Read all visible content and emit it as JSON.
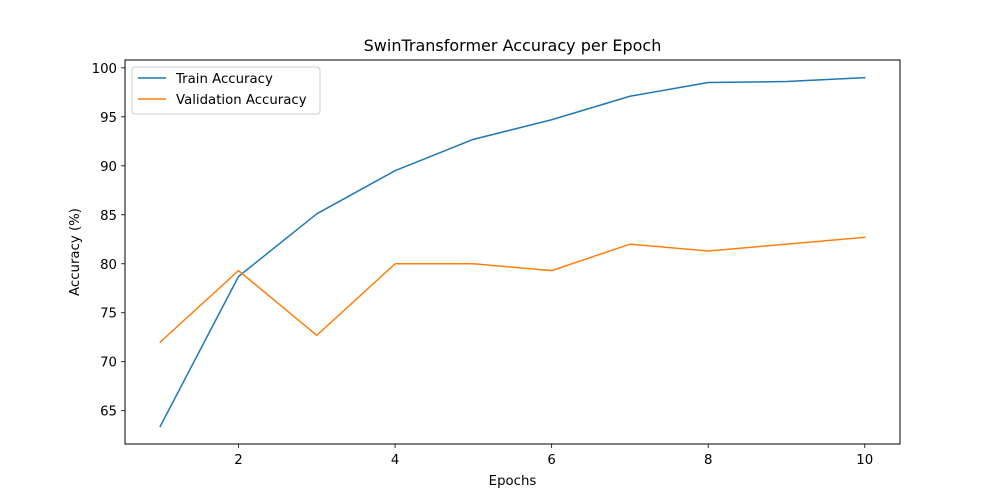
{
  "chart_data": {
    "type": "line",
    "title": "SwinTransformer Accuracy per Epoch",
    "xlabel": "Epochs",
    "ylabel": "Accuracy (%)",
    "x": [
      1,
      2,
      3,
      4,
      5,
      6,
      7,
      8,
      9,
      10
    ],
    "xlim": [
      0.55,
      10.45
    ],
    "ylim": [
      61.6,
      100.8
    ],
    "xticks": [
      2,
      4,
      6,
      8,
      10
    ],
    "yticks": [
      65,
      70,
      75,
      80,
      85,
      90,
      95,
      100
    ],
    "grid": false,
    "legend_position": "top-left",
    "series": [
      {
        "name": "Train Accuracy",
        "color": "#1f77b4",
        "values": [
          63.4,
          78.7,
          85.1,
          89.5,
          92.7,
          94.7,
          97.1,
          98.5,
          98.6,
          99.0
        ]
      },
      {
        "name": "Validation Accuracy",
        "color": "#ff7f0e",
        "values": [
          72.0,
          79.3,
          72.7,
          80.0,
          80.0,
          79.3,
          82.0,
          81.3,
          82.0,
          82.7
        ]
      }
    ]
  }
}
